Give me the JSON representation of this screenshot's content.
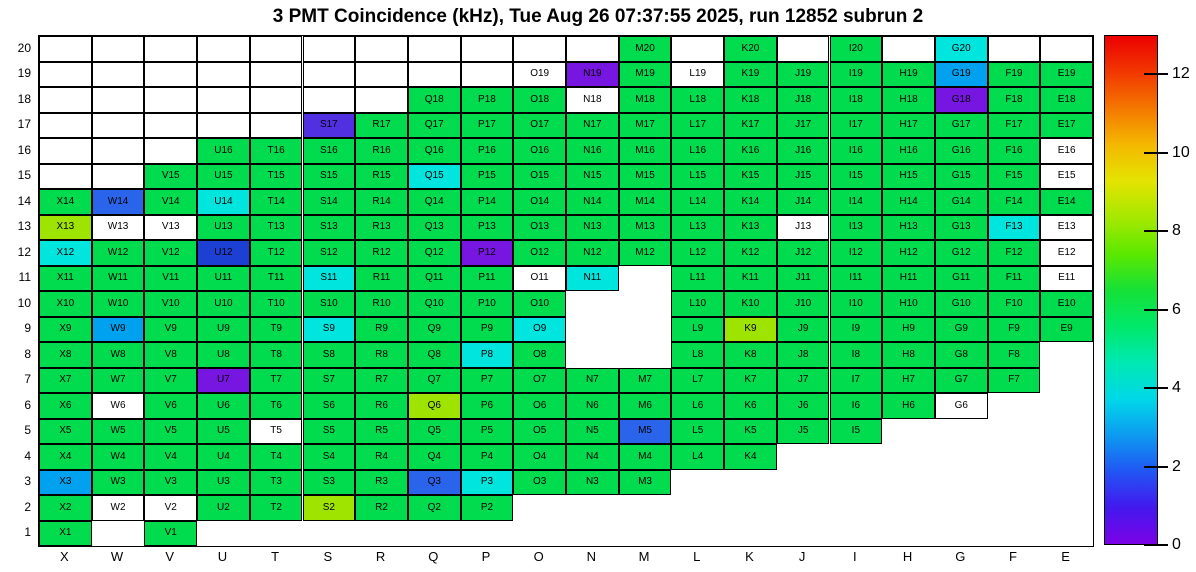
{
  "title": "3 PMT Coincidence (kHz), Tue Aug 26 07:37:55 2025, run 12852 subrun 2",
  "chart_data": {
    "type": "heatmap",
    "unit": "kHz",
    "x_categories": [
      "X",
      "W",
      "V",
      "U",
      "T",
      "S",
      "R",
      "Q",
      "P",
      "O",
      "N",
      "M",
      "L",
      "K",
      "J",
      "I",
      "H",
      "G",
      "F",
      "E"
    ],
    "y_categories": [
      1,
      2,
      3,
      4,
      5,
      6,
      7,
      8,
      9,
      10,
      11,
      12,
      13,
      14,
      15,
      16,
      17,
      18,
      19,
      20
    ],
    "cell_codes": {
      "o": "outlined empty bin (no label)",
      ".": "bin not drawn",
      "w": "white bin with label (approx 0 kHz)",
      "g": "green",
      "yg": "yellow-green",
      "c": "cyan",
      "lb": "light-blue",
      "b": "blue",
      "db": "dark-blue",
      "bp": "blue-violet",
      "p": "violet"
    },
    "palette": {
      "g": {
        "hex": "#00dc4e",
        "approx_kHz": 6.3
      },
      "yg": {
        "hex": "#9fe400",
        "approx_kHz": 7.9
      },
      "c": {
        "hex": "#00e6df",
        "approx_kHz": 4.3
      },
      "lb": {
        "hex": "#00a2f0",
        "approx_kHz": 3.4
      },
      "b": {
        "hex": "#2a64ea",
        "approx_kHz": 2.7
      },
      "db": {
        "hex": "#1c3fd4",
        "approx_kHz": 2.2
      },
      "bp": {
        "hex": "#5030e0",
        "approx_kHz": 1.4
      },
      "p": {
        "hex": "#7716e0",
        "approx_kHz": 0.9
      },
      "w": {
        "hex": "#ffffff",
        "approx_kHz": 0
      }
    },
    "rows": {
      "20": [
        "o",
        "o",
        "o",
        "o",
        "o",
        "o",
        "o",
        "o",
        "o",
        "o",
        "o",
        "g",
        "o",
        "g",
        "o",
        "g",
        "o",
        "c",
        "o",
        "o"
      ],
      "19": [
        "o",
        "o",
        "o",
        "o",
        "o",
        "o",
        "o",
        "o",
        "o",
        "w",
        "p",
        "g",
        "w",
        "g",
        "g",
        "g",
        "g",
        "lb",
        "g",
        "g"
      ],
      "18": [
        "o",
        "o",
        "o",
        "o",
        "o",
        "o",
        "o",
        "g",
        "g",
        "g",
        "w",
        "g",
        "g",
        "g",
        "g",
        "g",
        "g",
        "p",
        "g",
        "g"
      ],
      "17": [
        "o",
        "o",
        "o",
        "o",
        "o",
        "bp",
        "g",
        "g",
        "g",
        "g",
        "g",
        "g",
        "g",
        "g",
        "g",
        "g",
        "g",
        "g",
        "g",
        "g"
      ],
      "16": [
        "o",
        "o",
        "o",
        "g",
        "g",
        "g",
        "g",
        "g",
        "g",
        "g",
        "g",
        "g",
        "g",
        "g",
        "g",
        "g",
        "g",
        "g",
        "g",
        "w"
      ],
      "15": [
        "o",
        "o",
        "g",
        "g",
        "g",
        "g",
        "g",
        "c",
        "g",
        "g",
        "g",
        "g",
        "g",
        "g",
        "g",
        "g",
        "g",
        "g",
        "g",
        "w"
      ],
      "14": [
        "g",
        "b",
        "g",
        "c",
        "g",
        "g",
        "g",
        "g",
        "g",
        "g",
        "g",
        "g",
        "g",
        "g",
        "g",
        "g",
        "g",
        "g",
        "g",
        "g"
      ],
      "13": [
        "yg",
        "w",
        "w",
        "g",
        "g",
        "g",
        "g",
        "g",
        "g",
        "g",
        "g",
        "g",
        "g",
        "g",
        "w",
        "g",
        "g",
        "g",
        "c",
        "w"
      ],
      "12": [
        "c",
        "g",
        "g",
        "db",
        "g",
        "g",
        "g",
        "g",
        "p",
        "g",
        "g",
        "g",
        "g",
        "g",
        "g",
        "g",
        "g",
        "g",
        "g",
        "w"
      ],
      "11": [
        "g",
        "g",
        "g",
        "g",
        "g",
        "c",
        "g",
        "g",
        "g",
        "w",
        "c",
        ".",
        "g",
        "g",
        "g",
        "g",
        "g",
        "g",
        "g",
        "w"
      ],
      "10": [
        "g",
        "g",
        "g",
        "g",
        "g",
        "g",
        "g",
        "g",
        "g",
        "g",
        ".",
        ".",
        "g",
        "g",
        "g",
        "g",
        "g",
        "g",
        "g",
        "g"
      ],
      "9": [
        "g",
        "lb",
        "g",
        "g",
        "g",
        "c",
        "g",
        "g",
        "g",
        "c",
        ".",
        ".",
        "g",
        "yg",
        "g",
        "g",
        "g",
        "g",
        "g",
        "g"
      ],
      "8": [
        "g",
        "g",
        "g",
        "g",
        "g",
        "g",
        "g",
        "g",
        "c",
        "g",
        ".",
        ".",
        "g",
        "g",
        "g",
        "g",
        "g",
        "g",
        "g",
        "."
      ],
      "7": [
        "g",
        "g",
        "g",
        "p",
        "g",
        "g",
        "g",
        "g",
        "g",
        "g",
        "g",
        "g",
        "g",
        "g",
        "g",
        "g",
        "g",
        "g",
        "g",
        "."
      ],
      "6": [
        "g",
        "w",
        "g",
        "g",
        "g",
        "g",
        "g",
        "yg",
        "g",
        "g",
        "g",
        "g",
        "g",
        "g",
        "g",
        "g",
        "g",
        "w",
        ".",
        "."
      ],
      "5": [
        "g",
        "g",
        "g",
        "g",
        "w",
        "g",
        "g",
        "g",
        "g",
        "g",
        "g",
        "b",
        "g",
        "g",
        "g",
        "g",
        ".",
        ".",
        ".",
        "."
      ],
      "4": [
        "g",
        "g",
        "g",
        "g",
        "g",
        "g",
        "g",
        "g",
        "g",
        "g",
        "g",
        "g",
        "g",
        "g",
        ".",
        ".",
        ".",
        ".",
        ".",
        "."
      ],
      "3": [
        "lb",
        "g",
        "g",
        "g",
        "g",
        "g",
        "g",
        "b",
        "c",
        "g",
        "g",
        "g",
        ".",
        ".",
        ".",
        ".",
        ".",
        ".",
        ".",
        "."
      ],
      "2": [
        "g",
        "w",
        "w",
        "g",
        "g",
        "yg",
        "g",
        "g",
        "g",
        ".",
        ".",
        ".",
        ".",
        ".",
        ".",
        ".",
        ".",
        ".",
        ".",
        "."
      ],
      "1": [
        "g",
        ".",
        "g",
        ".",
        ".",
        ".",
        ".",
        ".",
        ".",
        ".",
        ".",
        ".",
        ".",
        ".",
        ".",
        ".",
        ".",
        ".",
        ".",
        "."
      ]
    },
    "colorbar": {
      "min": 0,
      "max": 13,
      "tick_values": [
        0,
        2,
        4,
        6,
        8,
        10,
        12
      ],
      "gradient_bottom_to_top": [
        "#7c02e6",
        "#4318ee",
        "#2156f4",
        "#0d9bf0",
        "#00d8e8",
        "#00e9b2",
        "#00e86a",
        "#16e136",
        "#5ce800",
        "#a6e800",
        "#e4e400",
        "#f4b800",
        "#f47800",
        "#f23800",
        "#ec0000"
      ]
    }
  }
}
